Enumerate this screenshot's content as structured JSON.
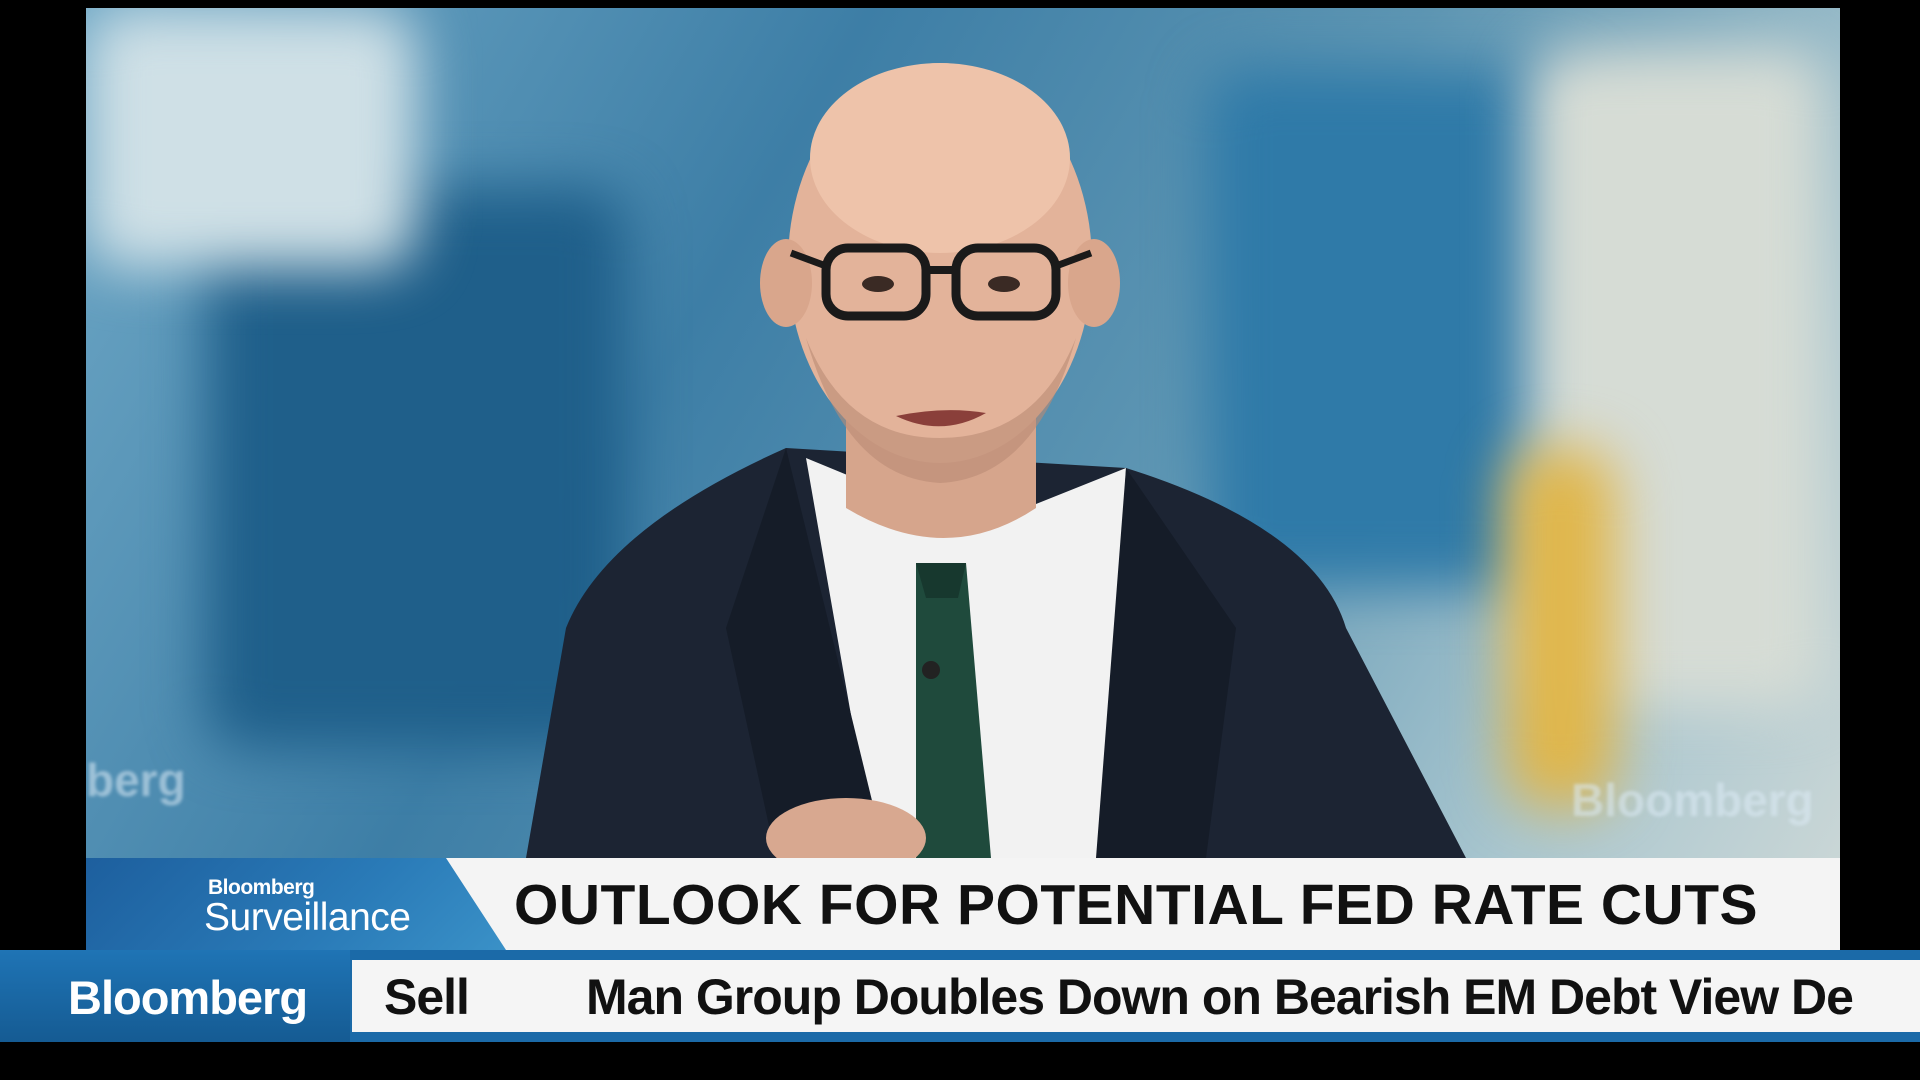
{
  "lower_third": {
    "brand": "Bloomberg",
    "show_name": "Surveillance",
    "headline": "OUTLOOK FOR POTENTIAL FED RATE CUTS"
  },
  "ticker": {
    "brand": "Bloomberg",
    "label": "Sell",
    "text": "Man Group Doubles Down  on Bearish EM Debt View  De"
  },
  "background": {
    "watermark_left": "berg",
    "watermark_right": "Bloomberg"
  },
  "colors": {
    "brand_blue": "#1b6aa8",
    "headline_bg": "#f4f4f4",
    "suit": "#1c2433",
    "tie": "#1f4a3c"
  }
}
